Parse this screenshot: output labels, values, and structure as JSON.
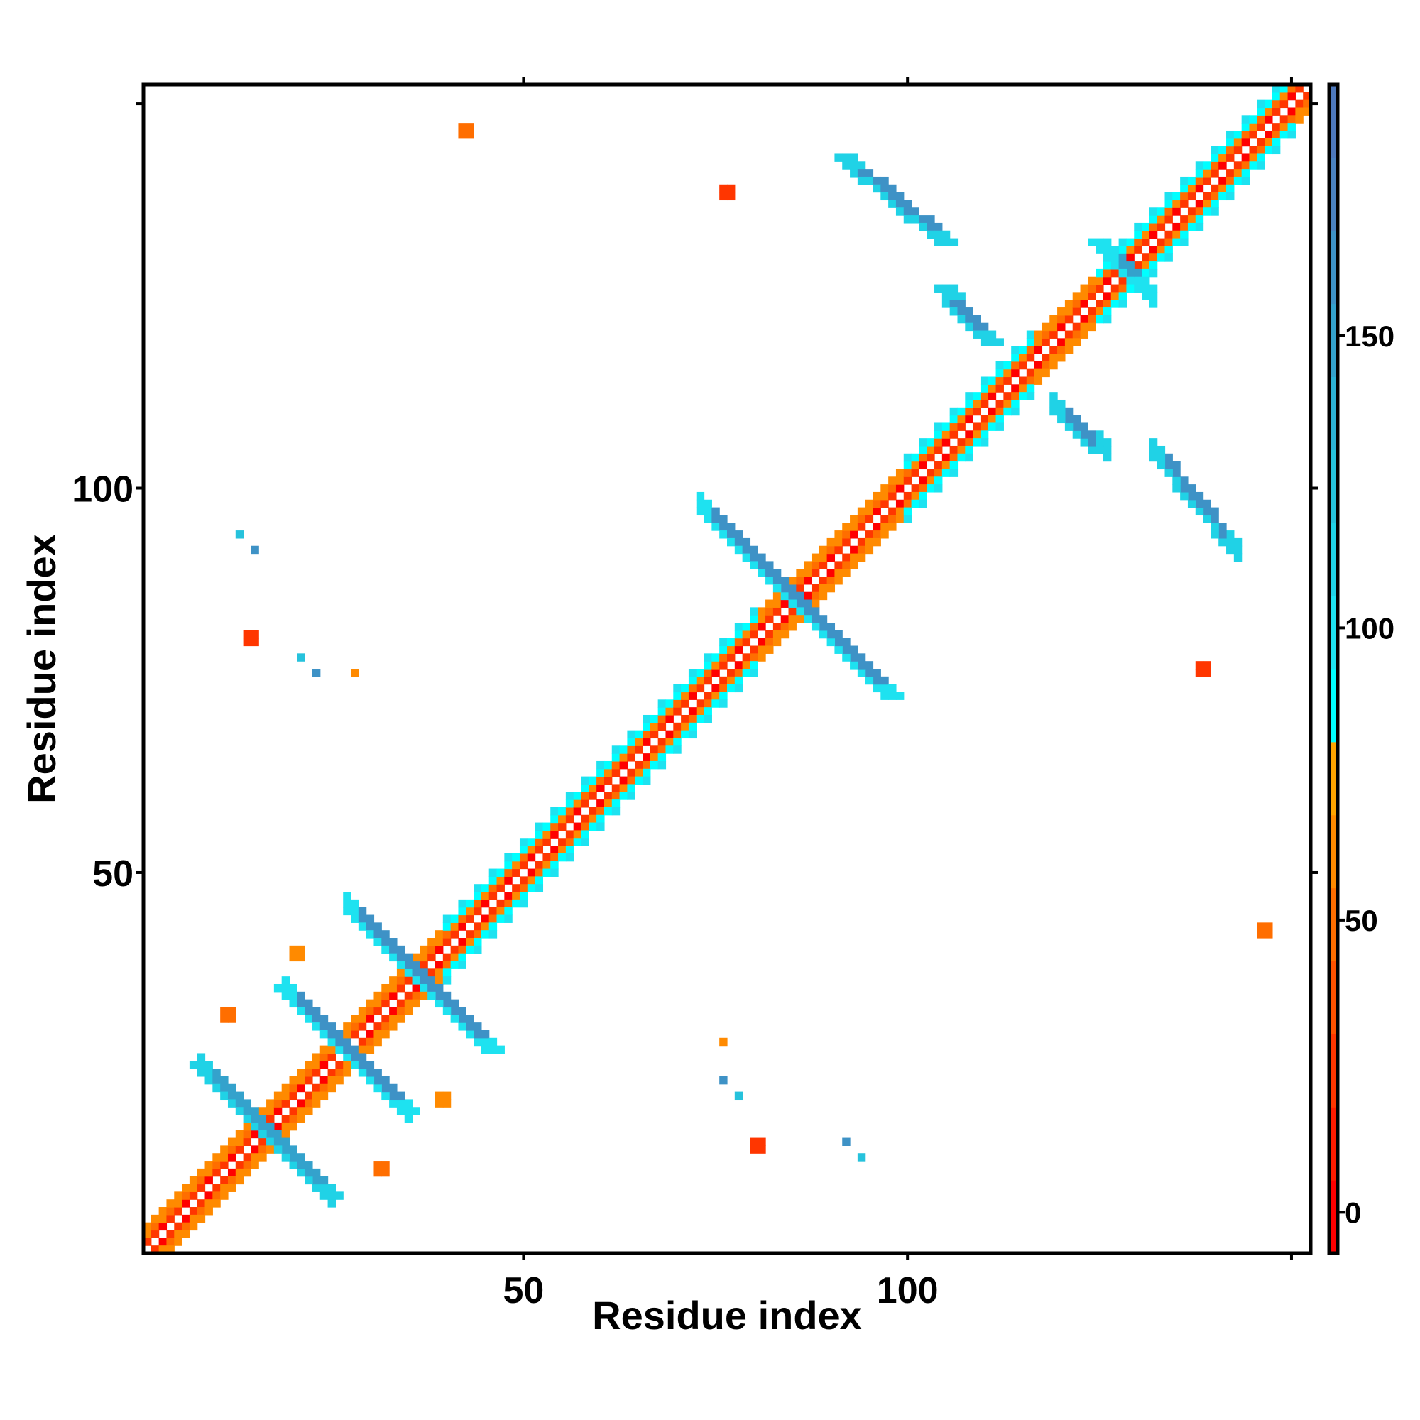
{
  "chart_data": {
    "type": "heatmap",
    "title": "",
    "xlabel": "Residue index",
    "ylabel": "Residue index",
    "n_residues": 152,
    "xlim": [
      0.5,
      152.5
    ],
    "ylim": [
      0.5,
      152.5
    ],
    "x_ticks": [
      50,
      100,
      150
    ],
    "x_tick_labels": [
      "50",
      "100",
      ""
    ],
    "y_ticks": [
      50,
      100,
      150
    ],
    "y_tick_labels": [
      "50",
      "100",
      ""
    ],
    "colorbar": {
      "range": [
        -7,
        193
      ],
      "ticks": [
        0,
        50,
        100,
        150
      ],
      "tick_labels": [
        "0",
        "50",
        "100",
        "150"
      ],
      "bin_width": 12.5,
      "colors": [
        "#ff0000",
        "#ff1c00",
        "#ff3600",
        "#ff5200",
        "#ff6e00",
        "#ff8a00",
        "#ffa500",
        "#00ffff",
        "#1ee2f0",
        "#20d2e6",
        "#26c2dc",
        "#2cb2d4",
        "#34a2cc",
        "#3e92c6",
        "#4a82c0",
        "#4d78bc",
        "#ffffff"
      ]
    },
    "diagonal": {
      "offset1_values": [
        0,
        30
      ],
      "offset2_values": [
        50,
        65
      ],
      "offset3_default": 60,
      "offset3_helix": 90,
      "helix_ranges": [
        [
          40,
          80
        ],
        [
          100,
          116
        ],
        [
          125,
          150
        ]
      ]
    },
    "strands": [
      {
        "from": [
          26.7,
          45.1
        ],
        "to": [
          45.1,
          26.8
        ],
        "width": 3,
        "edge": 105,
        "core": 160
      },
      {
        "from": [
          18.4,
          35.1
        ],
        "to": [
          35.0,
          18.5
        ],
        "width": 3,
        "edge": 105,
        "core": 160
      },
      {
        "from": [
          7.1,
          25.0
        ],
        "to": [
          25.0,
          7.2
        ],
        "width": 3,
        "edge": 110,
        "core": 150
      },
      {
        "from": [
          72.9,
          97.3
        ],
        "to": [
          97.2,
          73.0
        ],
        "width": 3,
        "edge": 105,
        "core": 160
      },
      {
        "from": [
          90.6,
          142.9
        ],
        "to": [
          104.3,
          131.6
        ],
        "width": 3,
        "edge": 110,
        "core": 160
      },
      {
        "from": [
          103.7,
          126.3
        ],
        "to": [
          110.2,
          118.6
        ],
        "width": 3,
        "edge": 110,
        "core": 160
      },
      {
        "from": [
          124.4,
          131.6
        ],
        "to": [
          131.0,
          125.1
        ],
        "width": 3,
        "edge": 100,
        "core": 150
      }
    ],
    "contacts": [
      {
        "x": 42,
        "y": 146,
        "value": 55,
        "size": 2
      },
      {
        "x": 76,
        "y": 138,
        "value": 20,
        "size": 2
      },
      {
        "x": 14,
        "y": 80,
        "value": 25,
        "size": 2
      },
      {
        "x": 13,
        "y": 94,
        "value": 120,
        "size": 1
      },
      {
        "x": 15,
        "y": 92,
        "value": 160,
        "size": 1
      },
      {
        "x": 21,
        "y": 78,
        "value": 130,
        "size": 1
      },
      {
        "x": 23,
        "y": 76,
        "value": 160,
        "size": 1
      },
      {
        "x": 28,
        "y": 76,
        "value": 60,
        "size": 1
      },
      {
        "x": 20,
        "y": 39,
        "value": 65,
        "size": 2
      },
      {
        "x": 11,
        "y": 31,
        "value": 50,
        "size": 2
      }
    ]
  }
}
